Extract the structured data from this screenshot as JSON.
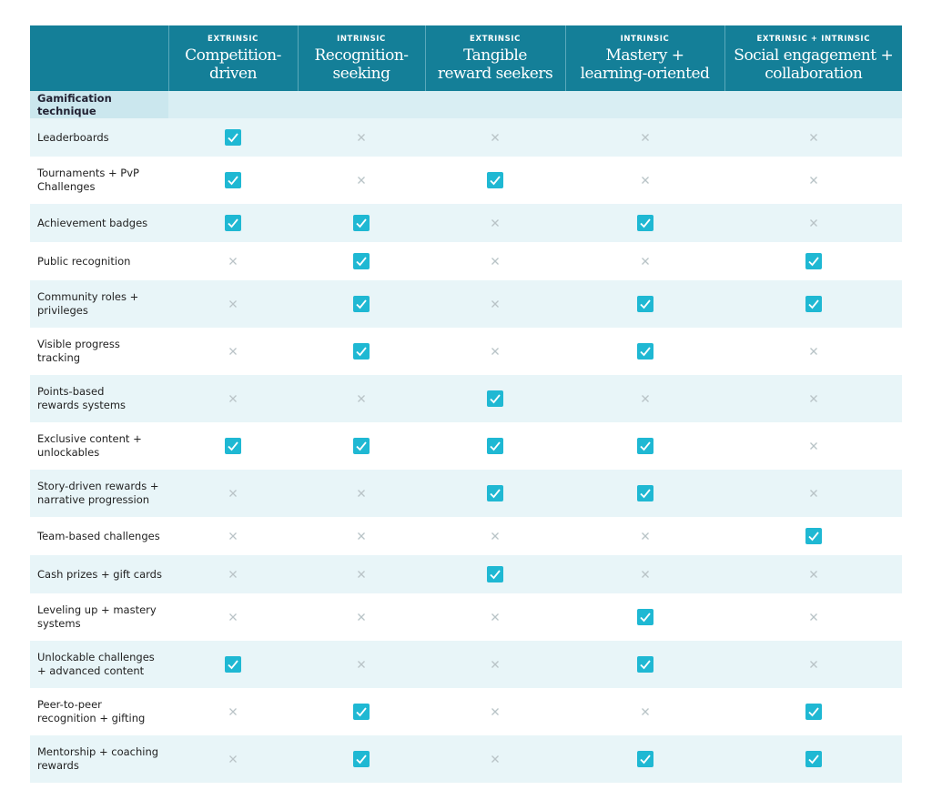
{
  "table": {
    "columns": [
      {
        "type": "EXTRINSIC",
        "title": [
          "Competition-",
          "driven"
        ]
      },
      {
        "type": "INTRINSIC",
        "title": [
          "Recognition-",
          "seeking"
        ]
      },
      {
        "type": "EXTRINSIC",
        "title": [
          "Tangible",
          "reward seekers"
        ]
      },
      {
        "type": "INTRINSIC",
        "title": [
          "Mastery +",
          "learning-oriented"
        ]
      },
      {
        "type": "EXTRINSIC + INTRINSIC",
        "title": [
          "Social engagement +",
          "collaboration"
        ]
      }
    ],
    "section": "Gamification technique",
    "rows": [
      {
        "technique": [
          "Leaderboards"
        ],
        "checks": [
          true,
          false,
          false,
          false,
          false
        ]
      },
      {
        "technique": [
          "Tournaments + PvP",
          "Challenges"
        ],
        "checks": [
          true,
          false,
          true,
          false,
          false
        ]
      },
      {
        "technique": [
          "Achievement badges"
        ],
        "checks": [
          true,
          true,
          false,
          true,
          false
        ]
      },
      {
        "technique": [
          "Public recognition"
        ],
        "checks": [
          false,
          true,
          false,
          false,
          true
        ]
      },
      {
        "technique": [
          "Community roles +",
          "privileges"
        ],
        "checks": [
          false,
          true,
          false,
          true,
          true
        ]
      },
      {
        "technique": [
          "Visible progress",
          "tracking"
        ],
        "checks": [
          false,
          true,
          false,
          true,
          false
        ]
      },
      {
        "technique": [
          "Points-based",
          "rewards systems"
        ],
        "checks": [
          false,
          false,
          true,
          false,
          false
        ]
      },
      {
        "technique": [
          "Exclusive content +",
          "unlockables"
        ],
        "checks": [
          true,
          true,
          true,
          true,
          false
        ]
      },
      {
        "technique": [
          "Story-driven rewards +",
          "narrative progression"
        ],
        "checks": [
          false,
          false,
          true,
          true,
          false
        ]
      },
      {
        "technique": [
          "Team-based challenges"
        ],
        "checks": [
          false,
          false,
          false,
          false,
          true
        ]
      },
      {
        "technique": [
          "Cash prizes + gift cards"
        ],
        "checks": [
          false,
          false,
          true,
          false,
          false
        ]
      },
      {
        "technique": [
          "Leveling up + mastery",
          "systems"
        ],
        "checks": [
          false,
          false,
          false,
          true,
          false
        ]
      },
      {
        "technique": [
          "Unlockable challenges",
          "+ advanced content"
        ],
        "checks": [
          true,
          false,
          false,
          true,
          false
        ]
      },
      {
        "technique": [
          "Peer-to-peer",
          "recognition + gifting"
        ],
        "checks": [
          false,
          true,
          false,
          false,
          true
        ]
      },
      {
        "technique": [
          "Mentorship + coaching",
          "rewards"
        ],
        "checks": [
          false,
          true,
          false,
          true,
          true
        ]
      }
    ]
  }
}
